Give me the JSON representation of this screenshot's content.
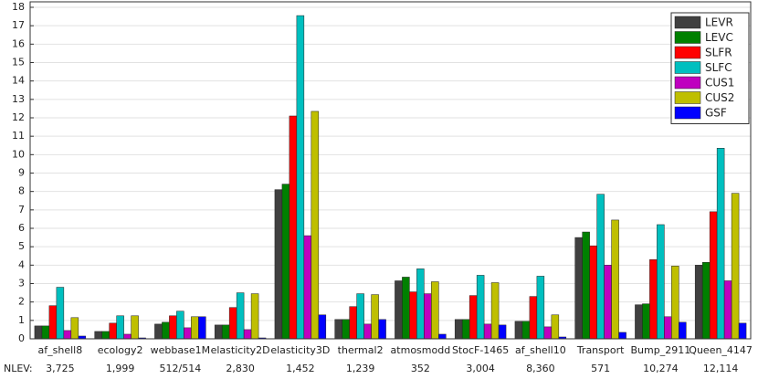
{
  "chart_data": {
    "type": "bar",
    "categories": [
      "af_shell8",
      "ecology2",
      "webbase1M",
      "elasticity2D",
      "elasticity3D",
      "thermal2",
      "atmosmodd",
      "StocF-1465",
      "af_shell10",
      "Transport",
      "Bump_2911",
      "Queen_4147"
    ],
    "row_label": "NLEV:",
    "row_values": [
      "3,725",
      "1,999",
      "512/514",
      "2,830",
      "1,452",
      "1,239",
      "352",
      "3,004",
      "8,360",
      "571",
      "10,274",
      "12,114"
    ],
    "series": [
      {
        "name": "LEVR",
        "color": "#404040",
        "values": [
          0.7,
          0.4,
          0.8,
          0.75,
          8.1,
          1.05,
          3.15,
          1.05,
          0.95,
          5.5,
          1.85,
          4.0
        ]
      },
      {
        "name": "LEVC",
        "color": "#008000",
        "values": [
          0.7,
          0.4,
          0.9,
          0.75,
          8.4,
          1.05,
          3.35,
          1.05,
          0.95,
          5.8,
          1.9,
          4.15
        ]
      },
      {
        "name": "SLFR",
        "color": "#ff0000",
        "values": [
          1.8,
          0.85,
          1.25,
          1.7,
          12.1,
          1.75,
          2.55,
          2.35,
          2.3,
          5.05,
          4.3,
          6.9
        ]
      },
      {
        "name": "SLFC",
        "color": "#00bfbf",
        "values": [
          2.8,
          1.25,
          1.5,
          2.5,
          17.55,
          2.45,
          3.8,
          3.45,
          3.4,
          7.85,
          6.2,
          10.35
        ]
      },
      {
        "name": "CUS1",
        "color": "#bf00bf",
        "values": [
          0.45,
          0.25,
          0.6,
          0.5,
          5.6,
          0.8,
          2.45,
          0.8,
          0.65,
          4.0,
          1.2,
          3.15
        ]
      },
      {
        "name": "CUS2",
        "color": "#bfbf00",
        "values": [
          1.15,
          1.25,
          1.2,
          2.45,
          12.35,
          2.4,
          3.1,
          3.05,
          1.3,
          6.45,
          3.95,
          7.9
        ]
      },
      {
        "name": "GSF",
        "color": "#0000ff",
        "values": [
          0.15,
          0.05,
          1.2,
          0.05,
          1.3,
          1.05,
          0.25,
          0.75,
          0.1,
          0.35,
          0.9,
          0.85
        ]
      }
    ],
    "ylim": [
      0,
      18
    ],
    "yticks": [
      0,
      1,
      2,
      3,
      4,
      5,
      6,
      7,
      8,
      9,
      10,
      11,
      12,
      13,
      14,
      15,
      16,
      17,
      18
    ],
    "grid": true,
    "legend": "top-right"
  }
}
